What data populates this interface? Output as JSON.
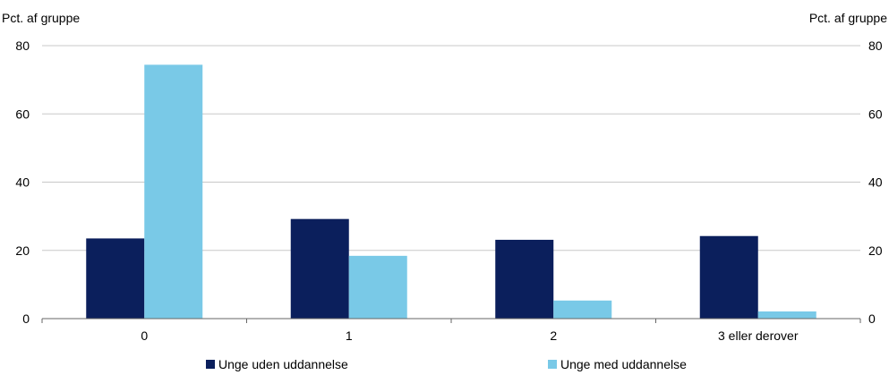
{
  "chart_data": {
    "type": "bar",
    "categories": [
      "0",
      "1",
      "2",
      "3 eller derover"
    ],
    "series": [
      {
        "name": "Unge uden uddannelse",
        "color": "#0b1f5c",
        "values": [
          23.5,
          29.2,
          23.1,
          24.2
        ]
      },
      {
        "name": "Unge med uddannelse",
        "color": "#79c9e7",
        "values": [
          74.4,
          18.4,
          5.3,
          2.1
        ]
      }
    ],
    "ylabel_left": "Pct. af gruppe",
    "ylabel_right": "Pct. af gruppe",
    "ylim": [
      0,
      80
    ],
    "yticks": [
      0,
      20,
      40,
      60,
      80
    ],
    "grid": true,
    "legend_position": "bottom"
  }
}
